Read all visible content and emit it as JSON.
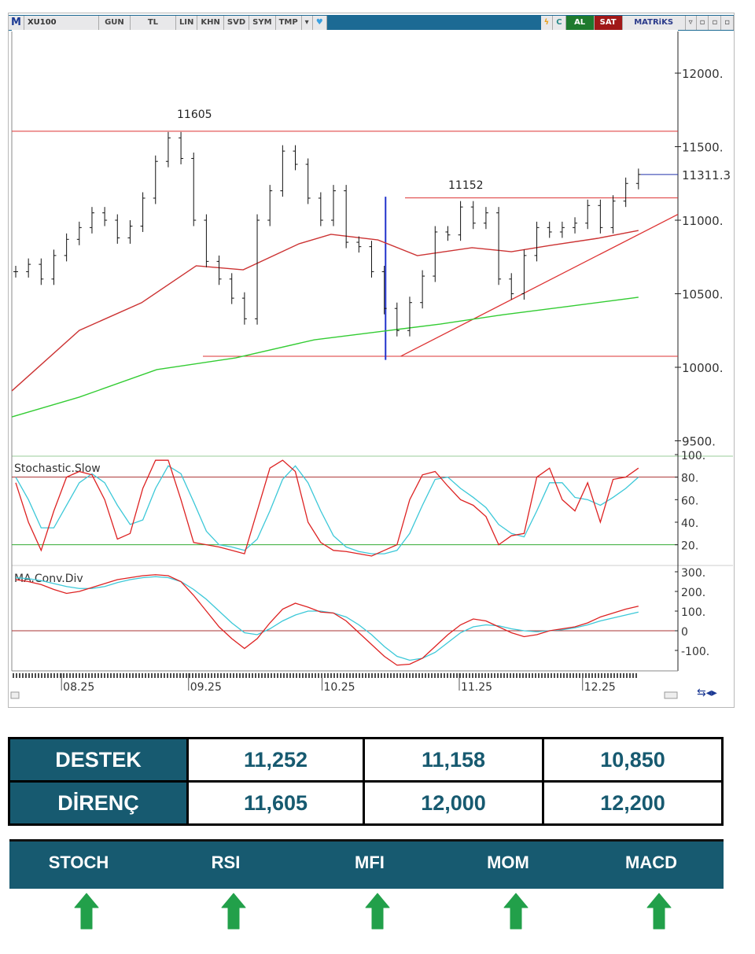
{
  "toolbar": {
    "logo": "M",
    "symbol": "XU100",
    "period": "GUN",
    "currency": "TL",
    "buttons": [
      "LIN",
      "KHN",
      "SVD",
      "SYM",
      "TMP"
    ],
    "refresh": "C",
    "buy": "AL",
    "sell": "SAT",
    "brand": "MATRiKS"
  },
  "colors": {
    "accent": "#175a70",
    "up_arrow": "#22a04a",
    "buy": "#1e7a2e",
    "sell": "#a01818"
  },
  "chart_data": {
    "type": "ohlc",
    "price_axis": {
      "ticks": [
        12000,
        11500,
        11000,
        10500,
        10000,
        9500
      ],
      "labels": [
        "12000.",
        "11500.",
        "11000.",
        "10500.",
        "10000.",
        "9500."
      ],
      "range": [
        9350,
        12250
      ]
    },
    "last_price": "11311.3",
    "x_labels": [
      "08.25",
      "09.25",
      "10.25",
      "11.25",
      "12.25"
    ],
    "x_label_bars": [
      3.6,
      13.6,
      24.1,
      34.9,
      44.6
    ],
    "closes": [
      10650,
      10700,
      10600,
      10760,
      10870,
      10950,
      11050,
      11000,
      10880,
      10960,
      11150,
      11400,
      11560,
      11420,
      11000,
      10720,
      10600,
      10470,
      10330,
      11000,
      11200,
      11470,
      11380,
      11150,
      11000,
      11200,
      10850,
      10820,
      10650,
      10400,
      10250,
      10440,
      10620,
      10920,
      10900,
      11090,
      10980,
      11050,
      10600,
      10500,
      10760,
      10950,
      10920,
      10950,
      10980,
      11100,
      10950,
      11130,
      11250,
      11311
    ],
    "ma_red": [
      [
        -0.3,
        9840
      ],
      [
        5,
        10251
      ],
      [
        9.9,
        10439
      ],
      [
        14.2,
        10690
      ],
      [
        17.9,
        10663
      ],
      [
        22.3,
        10840
      ],
      [
        24.8,
        10904
      ],
      [
        28.5,
        10866
      ],
      [
        31.6,
        10759
      ],
      [
        35.9,
        10813
      ],
      [
        39,
        10786
      ],
      [
        42.1,
        10829
      ],
      [
        45.8,
        10877
      ],
      [
        49,
        10930
      ]
    ],
    "ma_green": [
      [
        -0.3,
        9663
      ],
      [
        5,
        9797
      ],
      [
        11.1,
        9984
      ],
      [
        17.3,
        10064
      ],
      [
        23.5,
        10187
      ],
      [
        28.5,
        10241
      ],
      [
        33.4,
        10294
      ],
      [
        38.4,
        10358
      ],
      [
        43.3,
        10412
      ],
      [
        49,
        10476
      ]
    ],
    "annotations": {
      "resistance_label": "11605",
      "resistance": 11605,
      "mid_label": "11152",
      "mid": 11152,
      "support": 10075,
      "trend_from": [
        30.3,
        10075
      ],
      "trend_to": [
        52.1,
        11040
      ],
      "vline_bar": 29.1,
      "vline_range": [
        10050,
        11160
      ]
    },
    "stochastic": {
      "title": "Stochastic.Slow",
      "ticks": [
        "100.",
        "80.",
        "60.",
        "40.",
        "20."
      ],
      "tick_values": [
        100,
        80,
        60,
        40,
        20
      ],
      "levels": [
        80,
        20
      ],
      "k": [
        75,
        40,
        15,
        50,
        80,
        85,
        82,
        60,
        25,
        30,
        70,
        95,
        95,
        60,
        22,
        20,
        18,
        15,
        12,
        50,
        88,
        95,
        85,
        40,
        22,
        15,
        14,
        12,
        10,
        15,
        20,
        60,
        82,
        85,
        72,
        60,
        55,
        45,
        20,
        28,
        30,
        80,
        88,
        60,
        50,
        75,
        40,
        78,
        80,
        88
      ],
      "d": [
        80,
        60,
        35,
        35,
        55,
        75,
        83,
        75,
        55,
        38,
        42,
        70,
        90,
        83,
        58,
        32,
        20,
        18,
        15,
        25,
        50,
        78,
        90,
        75,
        50,
        28,
        18,
        14,
        12,
        12,
        15,
        30,
        55,
        78,
        80,
        70,
        62,
        53,
        38,
        30,
        27,
        50,
        75,
        75,
        62,
        60,
        55,
        62,
        70,
        80
      ]
    },
    "macd": {
      "title": "MA.Conv.Div",
      "ticks": [
        "300.",
        "200.",
        "100.",
        "0",
        "-100."
      ],
      "tick_values": [
        300,
        200,
        100,
        0,
        -100
      ],
      "macd": [
        260,
        250,
        235,
        210,
        190,
        200,
        220,
        240,
        260,
        270,
        280,
        285,
        280,
        250,
        180,
        100,
        20,
        -40,
        -90,
        -40,
        40,
        110,
        140,
        120,
        95,
        90,
        50,
        -10,
        -70,
        -130,
        -175,
        -170,
        -140,
        -80,
        -20,
        30,
        60,
        50,
        20,
        -10,
        -30,
        -20,
        0,
        10,
        20,
        40,
        70,
        90,
        110,
        125
      ],
      "signal": [
        270,
        265,
        255,
        240,
        225,
        215,
        215,
        225,
        245,
        260,
        270,
        275,
        270,
        250,
        210,
        160,
        100,
        40,
        -10,
        -20,
        10,
        50,
        80,
        100,
        100,
        90,
        70,
        30,
        -20,
        -80,
        -130,
        -150,
        -140,
        -110,
        -60,
        -10,
        20,
        30,
        25,
        10,
        0,
        -5,
        0,
        5,
        15,
        30,
        50,
        65,
        80,
        95
      ]
    }
  },
  "levels_table": {
    "rows": [
      {
        "label": "DESTEK",
        "values": [
          "11,252",
          "11,158",
          "10,850"
        ]
      },
      {
        "label": "DİRENÇ",
        "values": [
          "11,605",
          "12,000",
          "12,200"
        ]
      }
    ]
  },
  "indicators": [
    {
      "name": "STOCH",
      "signal": "up"
    },
    {
      "name": "RSI",
      "signal": "up"
    },
    {
      "name": "MFI",
      "signal": "up"
    },
    {
      "name": "MOM",
      "signal": "up"
    },
    {
      "name": "MACD",
      "signal": "up"
    }
  ]
}
